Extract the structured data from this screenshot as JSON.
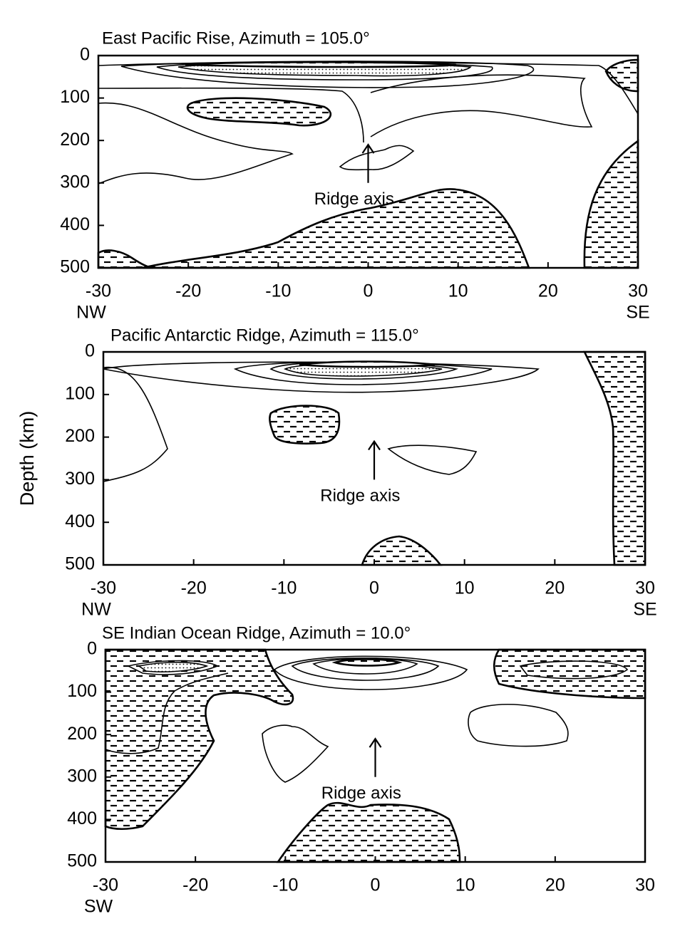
{
  "chart_data": [
    {
      "type": "contour",
      "title": "East Pacific Rise, Azimuth = 105.0°",
      "xlim": [
        -30,
        30
      ],
      "xticks": [
        -30,
        -20,
        -10,
        0,
        10,
        20,
        30
      ],
      "ylim": [
        500,
        0
      ],
      "yticks": [
        0,
        100,
        200,
        300,
        400,
        500
      ],
      "x_left_label": "NW",
      "x_right_label": "SE",
      "annotations": [
        {
          "text": "Ridge axis"
        }
      ]
    },
    {
      "type": "contour",
      "title": "Pacific Antarctic Ridge, Azimuth = 115.0°",
      "xlim": [
        -30,
        30
      ],
      "xticks": [
        -30,
        -20,
        -10,
        0,
        10,
        20,
        30
      ],
      "ylim": [
        500,
        0
      ],
      "yticks": [
        0,
        100,
        200,
        300,
        400,
        500
      ],
      "ylabel": "Depth (km)",
      "x_left_label": "NW",
      "x_right_label": "SE",
      "annotations": [
        {
          "text": "Ridge axis"
        }
      ]
    },
    {
      "type": "contour",
      "title": "SE Indian Ocean Ridge, Azimuth = 10.0°",
      "xlim": [
        -30,
        30
      ],
      "xticks": [
        -30,
        -20,
        -10,
        0,
        10,
        20,
        30
      ],
      "ylim": [
        500,
        0
      ],
      "yticks": [
        0,
        100,
        200,
        300,
        400,
        500
      ],
      "x_left_label": "SW",
      "annotations": [
        {
          "text": "Ridge axis"
        }
      ]
    }
  ]
}
